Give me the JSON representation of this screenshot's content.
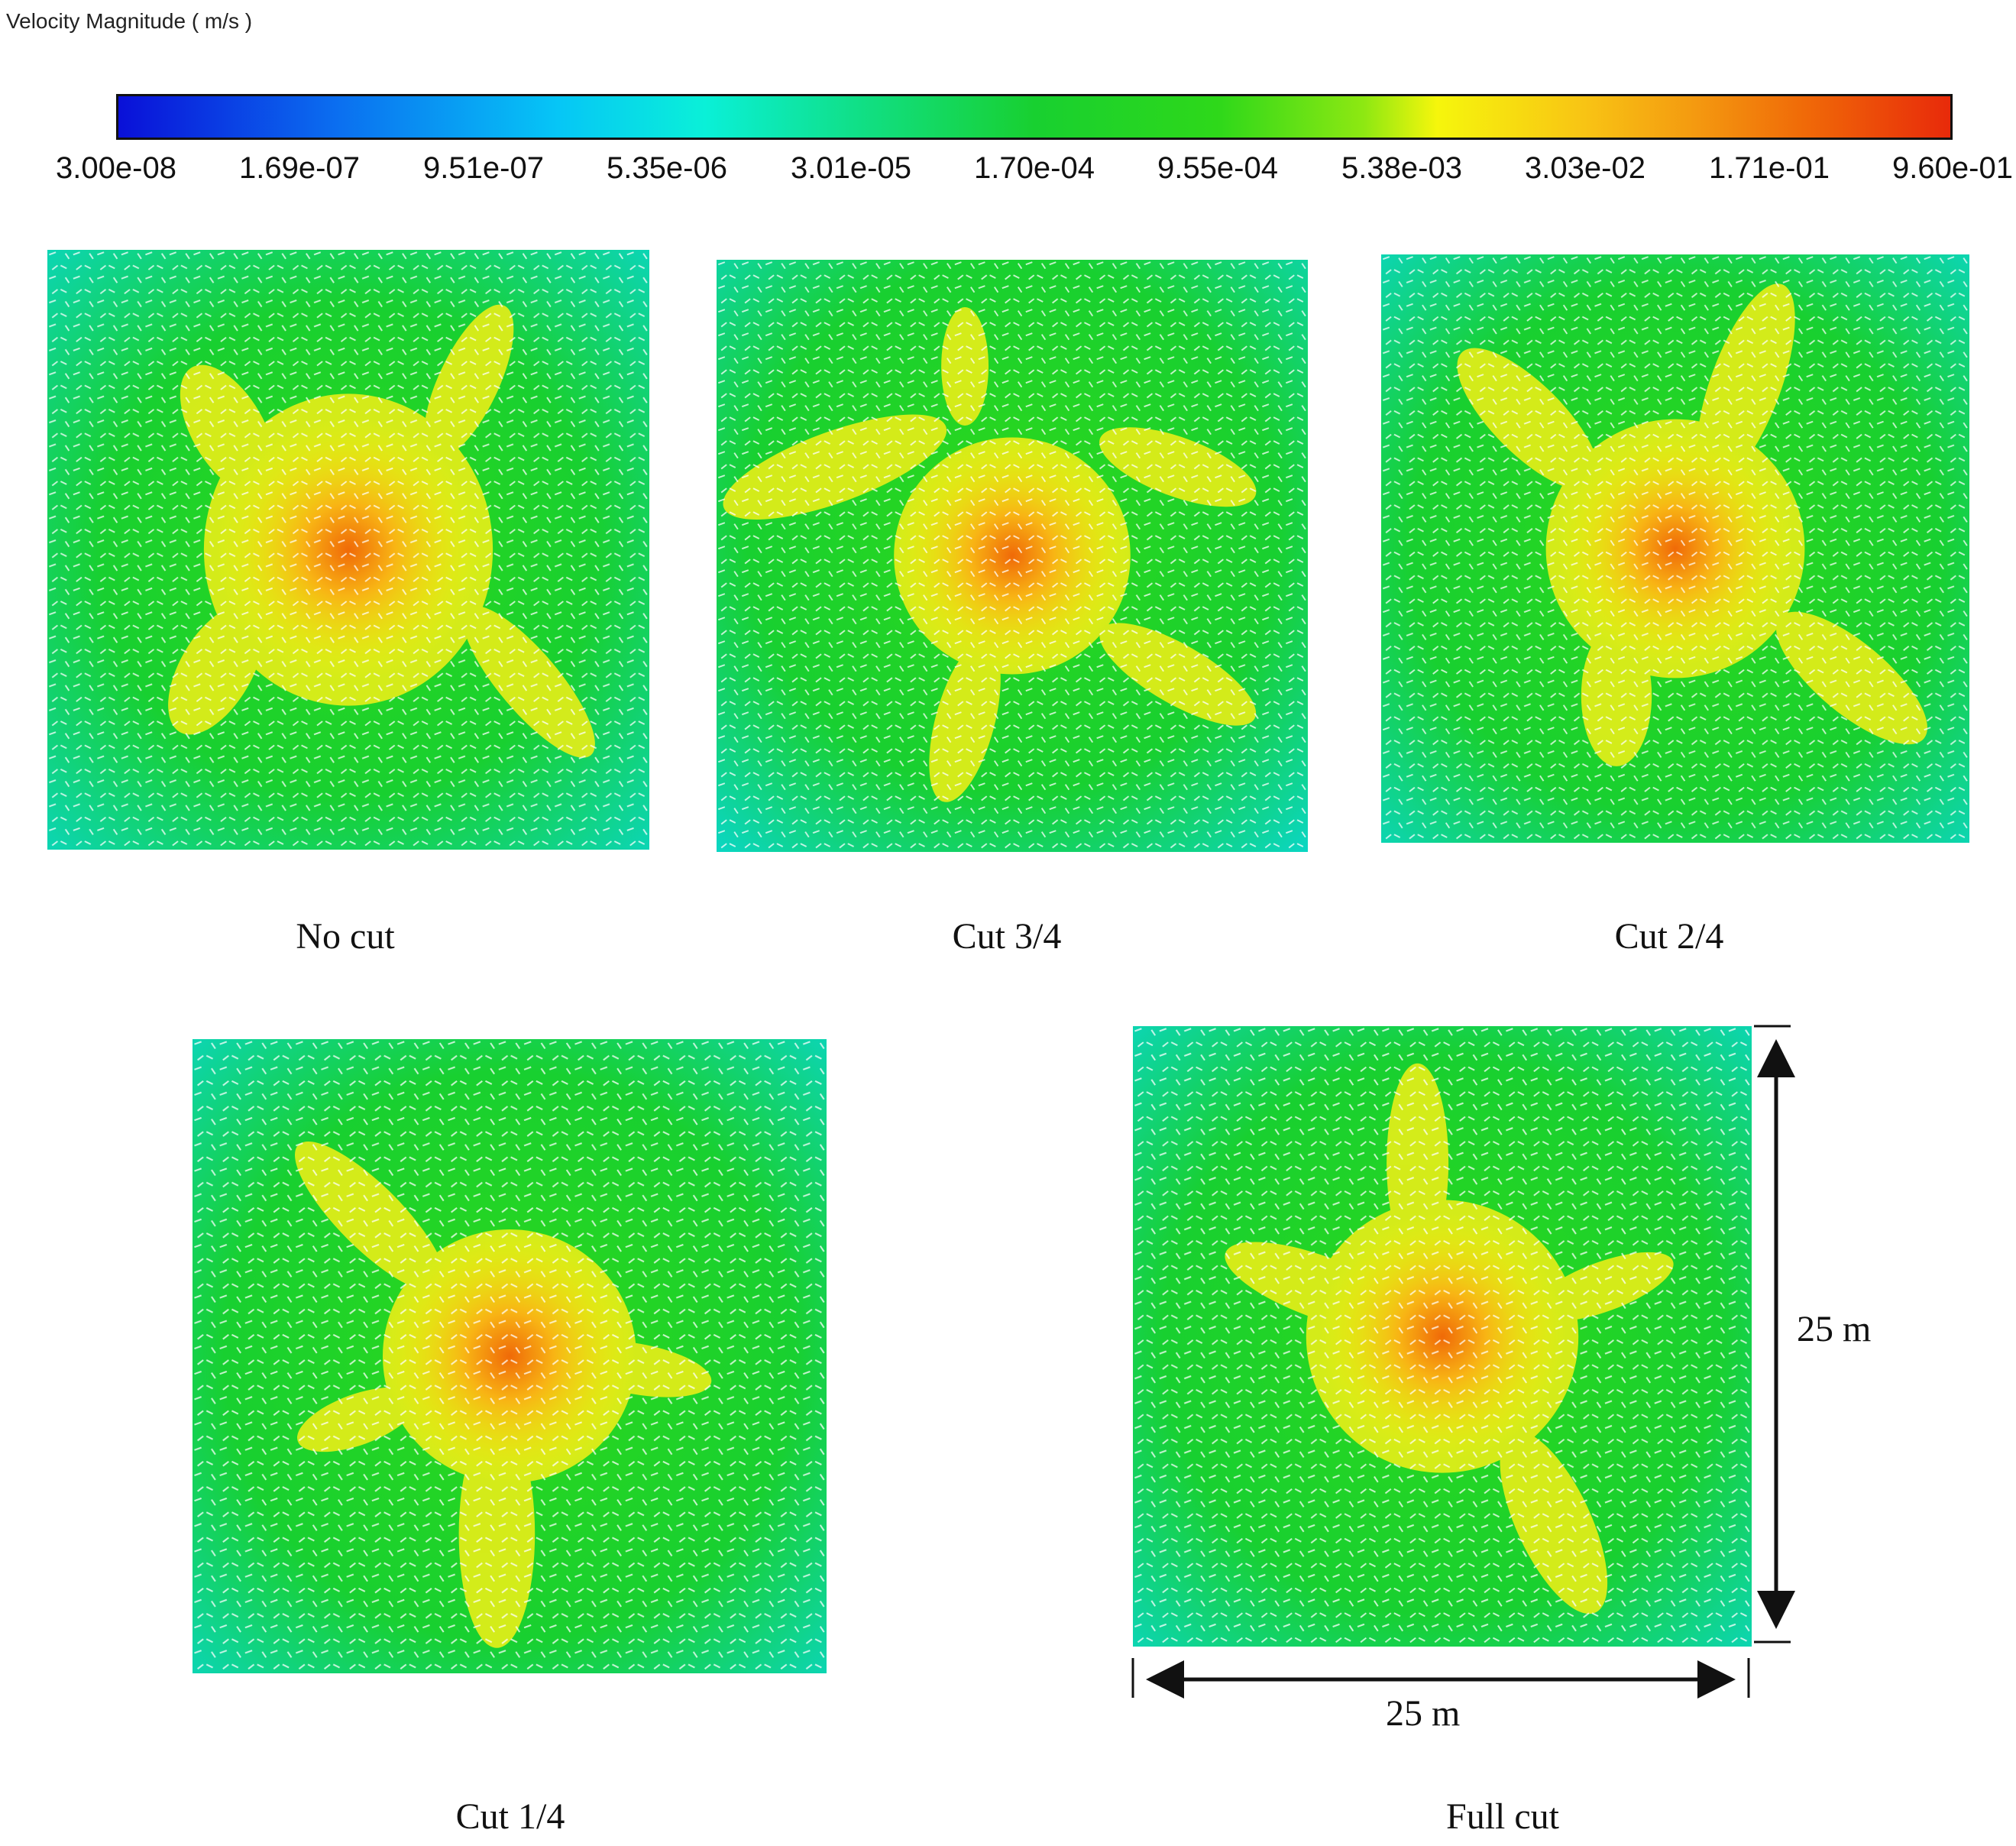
{
  "legend": {
    "title": "Velocity Magnitude ( m/s )",
    "colors": [
      "#0a10d8",
      "#06c6f6",
      "#18d030",
      "#f6f60c",
      "#e82a0a"
    ],
    "ticks": [
      "3.00e-08",
      "1.69e-07",
      "9.51e-07",
      "5.35e-06",
      "3.01e-05",
      "1.70e-04",
      "9.55e-04",
      "5.38e-03",
      "3.03e-02",
      "1.71e-01",
      "9.60e-01"
    ]
  },
  "panels": [
    {
      "caption": "No cut"
    },
    {
      "caption": "Cut 3/4"
    },
    {
      "caption": "Cut 2/4"
    },
    {
      "caption": "Cut 1/4"
    },
    {
      "caption": "Full cut"
    }
  ],
  "dimensions": {
    "height_label": "25 m",
    "width_label": "25 m"
  }
}
